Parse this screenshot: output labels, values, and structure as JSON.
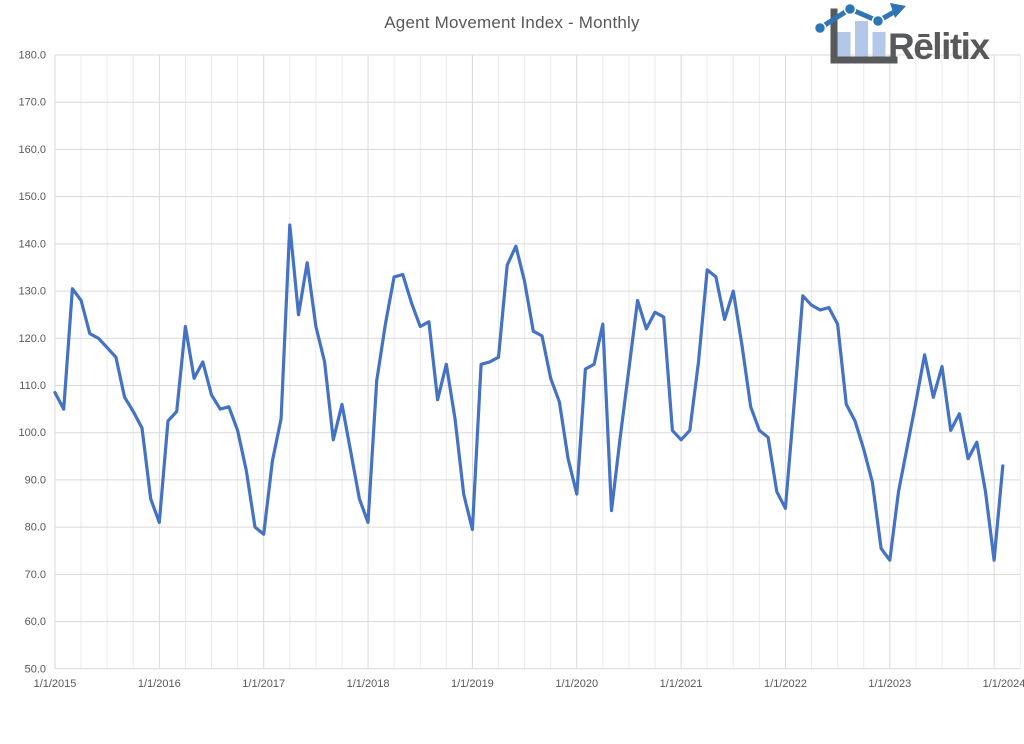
{
  "logo": {
    "text": "Rēlitix"
  },
  "chart_data": {
    "type": "line",
    "title": "Agent Movement Index - Monthly",
    "frequency": "monthly",
    "x_start": "1/1/2015",
    "x_end": "2/1/2024",
    "x_tick_labels": [
      "1/1/2015",
      "1/1/2016",
      "1/1/2017",
      "1/1/2018",
      "1/1/2019",
      "1/1/2020",
      "1/1/2021",
      "1/1/2022",
      "1/1/2023",
      "1/1/2024"
    ],
    "y_tick_labels": [
      "180.0",
      "170.0",
      "160.0",
      "150.0",
      "140.0",
      "130.0",
      "120.0",
      "110.0",
      "100.0",
      "90.0",
      "80.0",
      "70.0",
      "60.0",
      "50.0"
    ],
    "ylim": [
      50,
      180
    ],
    "y_major_step": 10,
    "grid": {
      "horizontal_major": true,
      "vertical_major_years": true,
      "vertical_minor_quarters": true
    },
    "legend": "none",
    "line_color": "#4472C4",
    "series": [
      {
        "name": "Agent Movement Index",
        "color": "#4472C4",
        "values": [
          108.5,
          105,
          130.5,
          128,
          121,
          120,
          118,
          116,
          107.5,
          104.5,
          101,
          86,
          81,
          102.5,
          104.5,
          122.5,
          111.5,
          115,
          108,
          105,
          105.5,
          100.5,
          92,
          80,
          78.5,
          94,
          103,
          144,
          125,
          136,
          122.5,
          115,
          98.5,
          106,
          96,
          86,
          81,
          111,
          123,
          133,
          133.5,
          127.5,
          122.5,
          123.5,
          107,
          114.5,
          103,
          87,
          79.5,
          114.5,
          115,
          116,
          135.5,
          139.5,
          132,
          121.5,
          120.5,
          111.5,
          106.5,
          94.5,
          87,
          113.5,
          114.5,
          123,
          83.5,
          99,
          113.5,
          128,
          122,
          125.5,
          124.5,
          100.5,
          98.5,
          100.5,
          115,
          134.5,
          133,
          124,
          130,
          118.5,
          105.5,
          100.5,
          99,
          87.5,
          84,
          106,
          129,
          127,
          126,
          126.5,
          123,
          106,
          102.5,
          96.5,
          89.5,
          75.5,
          73,
          87.5,
          97,
          106.5,
          116.5,
          107.5,
          114,
          100.5,
          104,
          94.5,
          98,
          87.5,
          73,
          93
        ]
      }
    ]
  },
  "colors": {
    "title_text": "#595959",
    "tick_text": "#595959",
    "grid_major": "#D9D9D9",
    "grid_minor": "#EBEBEB",
    "series_line": "#4472C4",
    "logo_gray": "#58595B",
    "logo_bar_fill": "#B3C7E8",
    "logo_line_blue": "#2E75B6"
  }
}
